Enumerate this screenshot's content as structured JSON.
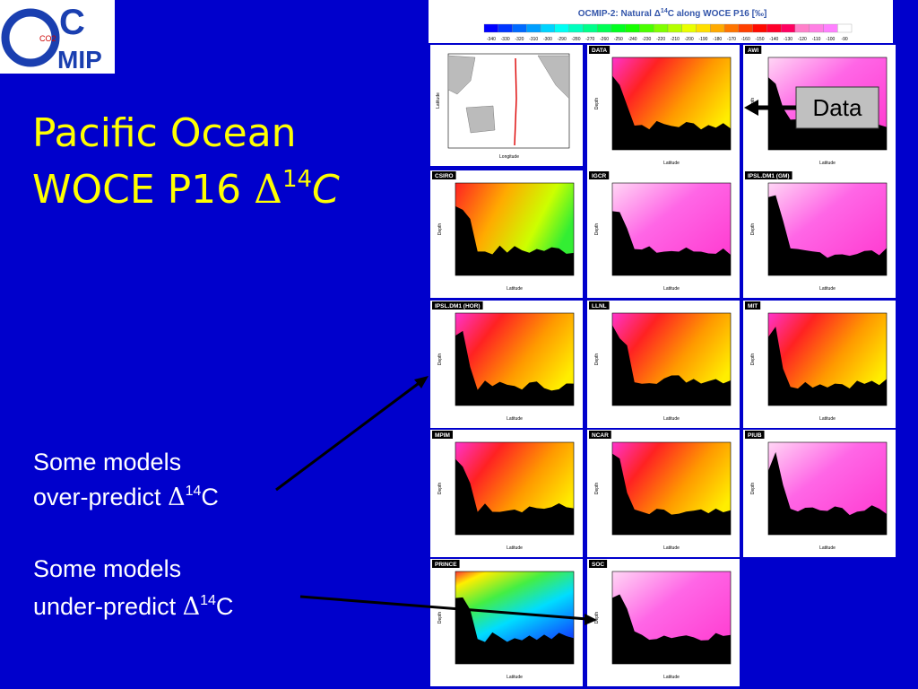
{
  "logo": {
    "letter_c": "C",
    "letters_mip": "MIP",
    "co2": "CO2"
  },
  "title": {
    "line1": "Pacific Ocean",
    "line2": [
      "WOCE P16 ",
      "Δ",
      "14",
      "C"
    ]
  },
  "notes": [
    {
      "line1": "Some models",
      "line2": [
        "over-predict ",
        "Δ",
        "14",
        "C"
      ]
    },
    {
      "line1": "Some models",
      "line2": [
        "under-predict ",
        "Δ",
        "14",
        "C"
      ]
    }
  ],
  "callout": "Data",
  "colorbar": {
    "title": [
      "OCMIP-2: Natural Δ",
      "14",
      "C along WOCE P16 [‰]"
    ],
    "ticks": [
      -340,
      -330,
      -320,
      -310,
      -300,
      -290,
      -280,
      -270,
      -260,
      -250,
      -240,
      -230,
      -220,
      -210,
      -200,
      -190,
      -180,
      -170,
      -160,
      -150,
      -140,
      -130,
      -120,
      -110,
      -100,
      -90
    ]
  },
  "map": {
    "x_label": "Longitude",
    "y_label": "Latitude"
  },
  "panel_axes": {
    "x_label": "Latitude",
    "y_label": "Depth"
  },
  "panels": [
    "DATA",
    "AWI",
    "CSIRO",
    "IGCR",
    "IPSL.DM1 (GM)",
    "IPSL.DM1 (HOR)",
    "LLNL",
    "MIT",
    "MPIM",
    "NCAR",
    "PIUB",
    "PRINCE",
    "SOC"
  ]
}
